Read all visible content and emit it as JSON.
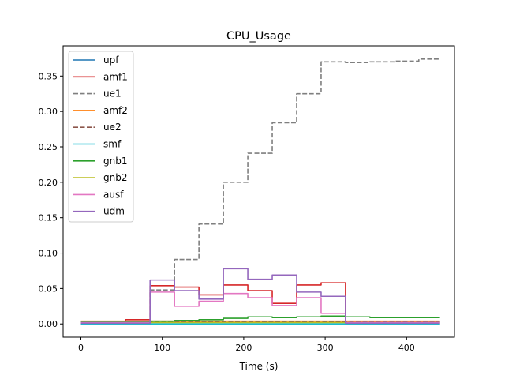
{
  "chart_data": {
    "type": "line",
    "title": "CPU_Usage",
    "xlabel": "Time (s)",
    "ylabel": "",
    "xlim": [
      -21.8,
      458.8
    ],
    "ylim": [
      -0.0187,
      0.3927
    ],
    "xticks": [
      0,
      100,
      200,
      300,
      400
    ],
    "yticks": [
      0.0,
      0.05,
      0.1,
      0.15,
      0.2,
      0.25,
      0.3,
      0.35
    ],
    "ytick_labels": [
      "0.00",
      "0.05",
      "0.10",
      "0.15",
      "0.20",
      "0.25",
      "0.30",
      "0.35"
    ],
    "grid": false,
    "legend_position": "upper-left",
    "series": [
      {
        "name": "upf",
        "color": "#1f77b4",
        "dash": "solid",
        "points": [
          [
            0,
            0.0
          ],
          [
            440,
            0.0
          ]
        ]
      },
      {
        "name": "amf1",
        "color": "#d62728",
        "dash": "solid",
        "points": [
          [
            0,
            0.003
          ],
          [
            55,
            0.003
          ],
          [
            55,
            0.006
          ],
          [
            85,
            0.006
          ],
          [
            85,
            0.054
          ],
          [
            115,
            0.054
          ],
          [
            115,
            0.052
          ],
          [
            145,
            0.052
          ],
          [
            145,
            0.041
          ],
          [
            175,
            0.041
          ],
          [
            175,
            0.055
          ],
          [
            205,
            0.055
          ],
          [
            205,
            0.047
          ],
          [
            235,
            0.047
          ],
          [
            235,
            0.029
          ],
          [
            265,
            0.029
          ],
          [
            265,
            0.055
          ],
          [
            295,
            0.055
          ],
          [
            295,
            0.058
          ],
          [
            325,
            0.058
          ],
          [
            325,
            0.002
          ],
          [
            440,
            0.002
          ]
        ]
      },
      {
        "name": "ue1",
        "color": "#7f7f7f",
        "dash": "dashed",
        "points": [
          [
            0,
            0.003
          ],
          [
            85,
            0.003
          ],
          [
            85,
            0.048
          ],
          [
            115,
            0.048
          ],
          [
            115,
            0.091
          ],
          [
            145,
            0.091
          ],
          [
            145,
            0.141
          ],
          [
            175,
            0.141
          ],
          [
            175,
            0.2
          ],
          [
            205,
            0.2
          ],
          [
            205,
            0.241
          ],
          [
            235,
            0.241
          ],
          [
            235,
            0.284
          ],
          [
            265,
            0.284
          ],
          [
            265,
            0.325
          ],
          [
            295,
            0.325
          ],
          [
            295,
            0.37
          ],
          [
            325,
            0.37
          ],
          [
            325,
            0.369
          ],
          [
            355,
            0.369
          ],
          [
            355,
            0.37
          ],
          [
            385,
            0.37
          ],
          [
            385,
            0.371
          ],
          [
            415,
            0.371
          ],
          [
            415,
            0.374
          ],
          [
            440,
            0.374
          ]
        ]
      },
      {
        "name": "amf2",
        "color": "#ff7f0e",
        "dash": "solid",
        "points": [
          [
            0,
            0.004
          ],
          [
            440,
            0.004
          ]
        ]
      },
      {
        "name": "ue2",
        "color": "#8c564b",
        "dash": "dashed",
        "points": [
          [
            0,
            0.003
          ],
          [
            440,
            0.003
          ]
        ]
      },
      {
        "name": "smf",
        "color": "#17becf",
        "dash": "solid",
        "points": [
          [
            0,
            0.0
          ],
          [
            440,
            0.0
          ]
        ]
      },
      {
        "name": "gnb1",
        "color": "#2ca02c",
        "dash": "solid",
        "points": [
          [
            0,
            0.003
          ],
          [
            85,
            0.003
          ],
          [
            85,
            0.004
          ],
          [
            115,
            0.004
          ],
          [
            115,
            0.005
          ],
          [
            145,
            0.005
          ],
          [
            145,
            0.006
          ],
          [
            175,
            0.006
          ],
          [
            175,
            0.008
          ],
          [
            205,
            0.008
          ],
          [
            205,
            0.01
          ],
          [
            235,
            0.01
          ],
          [
            235,
            0.009
          ],
          [
            265,
            0.009
          ],
          [
            265,
            0.01
          ],
          [
            295,
            0.01
          ],
          [
            295,
            0.011
          ],
          [
            325,
            0.011
          ],
          [
            325,
            0.01
          ],
          [
            355,
            0.01
          ],
          [
            355,
            0.009
          ],
          [
            385,
            0.009
          ],
          [
            385,
            0.009
          ],
          [
            440,
            0.009
          ]
        ]
      },
      {
        "name": "gnb2",
        "color": "#bcbd22",
        "dash": "solid",
        "points": [
          [
            0,
            0.002
          ],
          [
            440,
            0.002
          ]
        ]
      },
      {
        "name": "ausf",
        "color": "#e377c2",
        "dash": "solid",
        "points": [
          [
            0,
            0.002
          ],
          [
            85,
            0.002
          ],
          [
            85,
            0.045
          ],
          [
            115,
            0.045
          ],
          [
            115,
            0.025
          ],
          [
            145,
            0.025
          ],
          [
            145,
            0.032
          ],
          [
            175,
            0.032
          ],
          [
            175,
            0.043
          ],
          [
            205,
            0.043
          ],
          [
            205,
            0.037
          ],
          [
            235,
            0.037
          ],
          [
            235,
            0.026
          ],
          [
            265,
            0.026
          ],
          [
            265,
            0.037
          ],
          [
            295,
            0.037
          ],
          [
            295,
            0.015
          ],
          [
            325,
            0.015
          ],
          [
            325,
            0.002
          ],
          [
            440,
            0.002
          ]
        ]
      },
      {
        "name": "udm",
        "color": "#9467bd",
        "dash": "solid",
        "points": [
          [
            0,
            0.001
          ],
          [
            85,
            0.001
          ],
          [
            85,
            0.062
          ],
          [
            115,
            0.062
          ],
          [
            115,
            0.047
          ],
          [
            145,
            0.047
          ],
          [
            145,
            0.035
          ],
          [
            175,
            0.035
          ],
          [
            175,
            0.078
          ],
          [
            205,
            0.078
          ],
          [
            205,
            0.063
          ],
          [
            235,
            0.063
          ],
          [
            235,
            0.069
          ],
          [
            265,
            0.069
          ],
          [
            265,
            0.045
          ],
          [
            295,
            0.045
          ],
          [
            295,
            0.039
          ],
          [
            325,
            0.039
          ],
          [
            325,
            0.001
          ],
          [
            440,
            0.001
          ]
        ]
      }
    ]
  }
}
